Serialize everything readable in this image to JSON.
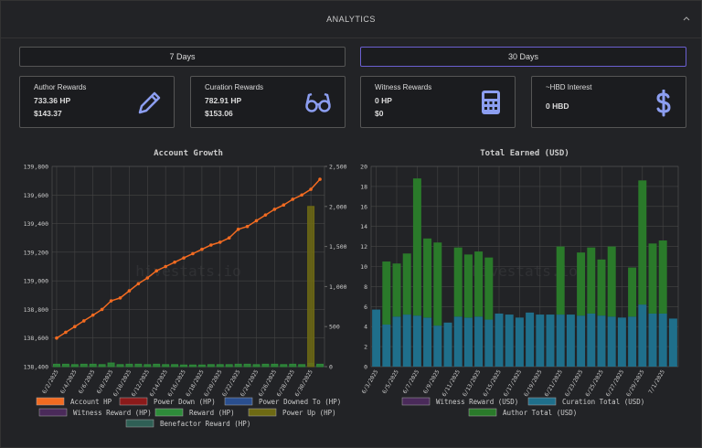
{
  "header": {
    "title": "ANALYTICS"
  },
  "buttons": [
    "7 Days",
    "30 Days"
  ],
  "cards": [
    {
      "title": "Author Rewards",
      "line1": "733.36 HP",
      "line2": "$143.37"
    },
    {
      "title": "Curation Rewards",
      "line1": "782.91 HP",
      "line2": "$153.06"
    },
    {
      "title": "Witness Rewards",
      "line1": "0 HP",
      "line2": "$0"
    },
    {
      "title": "~HBD Interest",
      "line1": "0 HBD"
    }
  ],
  "chart_data": [
    {
      "type": "combo",
      "title": "Account Growth",
      "watermark": "hivestats.io",
      "categories": [
        "6/2/2025",
        null,
        "6/4/2025",
        null,
        "6/6/2025",
        null,
        "6/8/2025",
        null,
        "6/10/2025",
        null,
        "6/12/2025",
        null,
        "6/14/2025",
        null,
        "6/16/2025",
        null,
        "6/18/2025",
        null,
        "6/20/2025",
        null,
        "6/22/2025",
        null,
        "6/24/2025",
        null,
        "6/26/2025",
        null,
        "6/28/2025",
        null,
        "6/30/2025",
        null
      ],
      "ylim": [
        138400,
        139800
      ],
      "yticks": [
        {
          "value": 138400,
          "label": "138,400"
        },
        {
          "value": 138600,
          "label": "138,600"
        },
        {
          "value": 138800,
          "label": "138,800"
        },
        {
          "value": 139000,
          "label": "139,000"
        },
        {
          "value": 139200,
          "label": "139,200"
        },
        {
          "value": 139400,
          "label": "139,400"
        },
        {
          "value": 139600,
          "label": "139,600"
        },
        {
          "value": 139800,
          "label": "139,800"
        }
      ],
      "y2lim": [
        0,
        2500
      ],
      "y2ticks": [
        0,
        500,
        {
          "value": 1000,
          "label": "1,000"
        },
        {
          "value": 1500,
          "label": "1,500"
        },
        {
          "value": 2000,
          "label": "2,000"
        },
        {
          "value": 2500,
          "label": "2,500"
        }
      ],
      "grid": true,
      "series": [
        {
          "name": "Account HP",
          "kind": "line",
          "color": "#f26b21",
          "values": [
            138600,
            138640,
            138680,
            138720,
            138760,
            138800,
            138860,
            138880,
            138930,
            138980,
            139020,
            139070,
            139100,
            139130,
            139160,
            139190,
            139220,
            139250,
            139270,
            139300,
            139360,
            139380,
            139420,
            139460,
            139500,
            139530,
            139570,
            139600,
            139640,
            139710
          ]
        },
        {
          "name": "Power Down (HP)",
          "kind": "bar",
          "axis": "y2",
          "color": "#8b1a1a",
          "values": [
            0,
            0,
            0,
            0,
            0,
            0,
            0,
            0,
            0,
            0,
            0,
            0,
            0,
            0,
            0,
            0,
            0,
            0,
            0,
            0,
            0,
            0,
            0,
            0,
            0,
            0,
            0,
            0,
            0,
            0
          ]
        },
        {
          "name": "Power Downed To (HP)",
          "kind": "bar",
          "axis": "y2",
          "color": "#2a4f8f",
          "values": [
            0,
            0,
            0,
            0,
            0,
            0,
            0,
            0,
            0,
            0,
            0,
            0,
            0,
            0,
            0,
            0,
            0,
            0,
            0,
            0,
            0,
            0,
            0,
            0,
            0,
            0,
            0,
            0,
            0,
            0
          ]
        },
        {
          "name": "Witness Reward (HP)",
          "kind": "bar",
          "axis": "y2",
          "color": "#4a2a5a",
          "values": [
            0,
            0,
            0,
            0,
            0,
            0,
            0,
            0,
            0,
            0,
            0,
            0,
            0,
            0,
            0,
            0,
            0,
            0,
            0,
            0,
            0,
            0,
            0,
            0,
            0,
            0,
            0,
            0,
            0,
            0
          ]
        },
        {
          "name": "Reward (HP)",
          "kind": "bar",
          "axis": "y2",
          "color": "#2e8b3a",
          "values": [
            30,
            30,
            25,
            30,
            30,
            25,
            45,
            25,
            30,
            30,
            25,
            30,
            25,
            25,
            20,
            20,
            20,
            25,
            25,
            25,
            30,
            30,
            25,
            30,
            30,
            25,
            30,
            25,
            40,
            30
          ]
        },
        {
          "name": "Power Up (HP)",
          "kind": "bar",
          "axis": "y2",
          "color": "#6e6a14",
          "values": [
            0,
            0,
            0,
            0,
            0,
            0,
            0,
            0,
            0,
            0,
            0,
            0,
            0,
            0,
            0,
            0,
            0,
            0,
            0,
            0,
            0,
            0,
            0,
            0,
            0,
            0,
            0,
            0,
            2000,
            0
          ]
        },
        {
          "name": "Benefactor Reward (HP)",
          "kind": "bar",
          "axis": "y2",
          "color": "#2f5f55",
          "values": [
            0,
            0,
            0,
            0,
            0,
            0,
            0,
            0,
            0,
            0,
            0,
            0,
            0,
            0,
            0,
            0,
            0,
            0,
            0,
            0,
            0,
            0,
            0,
            0,
            0,
            0,
            0,
            0,
            0,
            0
          ]
        }
      ]
    },
    {
      "type": "stacked_bar",
      "title": "Total Earned (USD)",
      "watermark": "hivestats.io",
      "categories": [
        "6/3/2025",
        null,
        "6/5/2025",
        null,
        "6/7/2025",
        null,
        "6/9/2025",
        null,
        "6/11/2025",
        null,
        "6/13/2025",
        null,
        "6/15/2025",
        null,
        "6/17/2025",
        null,
        "6/19/2025",
        null,
        "6/21/2025",
        null,
        "6/23/2025",
        null,
        "6/25/2025",
        null,
        "6/27/2025",
        null,
        "6/29/2025",
        null,
        "7/1/2025",
        null
      ],
      "ylim": [
        0,
        20
      ],
      "yticks": [
        0,
        2,
        4,
        6,
        8,
        10,
        12,
        14,
        16,
        18,
        20
      ],
      "grid": true,
      "series": [
        {
          "name": "Witness Reward (USD)",
          "color": "#4a2a5a",
          "values": [
            0,
            0,
            0,
            0,
            0,
            0,
            0,
            0,
            0,
            0,
            0,
            0,
            0,
            0,
            0,
            0,
            0,
            0,
            0,
            0,
            0,
            0,
            0,
            0,
            0,
            0,
            0,
            0,
            0,
            0
          ]
        },
        {
          "name": "Curation Total (USD)",
          "color": "#1f6f8b",
          "values": [
            5.7,
            4.2,
            5.0,
            5.2,
            5.1,
            4.9,
            4.1,
            4.4,
            5.0,
            4.9,
            5.0,
            4.7,
            5.3,
            5.2,
            4.9,
            5.4,
            5.2,
            5.2,
            5.2,
            5.2,
            5.1,
            5.3,
            5.1,
            5.0,
            4.9,
            5.0,
            6.2,
            5.3,
            5.3,
            4.8
          ]
        },
        {
          "name": "Author Total (USD)",
          "color": "#2a7a2a",
          "values": [
            0,
            6.3,
            5.3,
            6.1,
            13.7,
            7.9,
            8.3,
            0,
            6.9,
            6.3,
            6.5,
            6.2,
            0,
            0,
            0,
            0,
            0,
            0,
            6.8,
            0,
            6.3,
            6.6,
            5.6,
            7.0,
            0,
            4.9,
            12.4,
            7.0,
            7.3,
            0
          ]
        }
      ]
    }
  ]
}
